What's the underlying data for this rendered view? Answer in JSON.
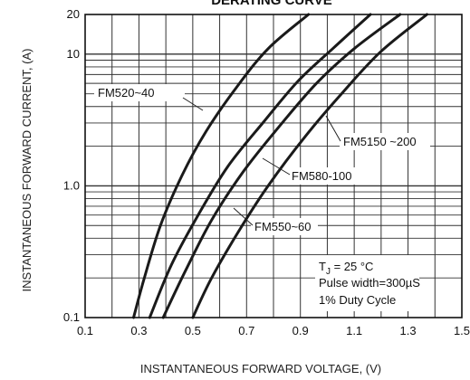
{
  "chart_data": {
    "type": "line",
    "title": "DERATING CURVE",
    "xlabel": "INSTANTANEOUS FORWARD VOLTAGE, (V)",
    "ylabel": "INSTANTANEOUS FORWARD CURRENT, (A)",
    "xlim": [
      0.1,
      1.5
    ],
    "ylim": [
      0.1,
      20
    ],
    "yscale": "log",
    "grid": true,
    "x_ticks": [
      "0.1",
      "0.3",
      "0.5",
      "0.7",
      "0.9",
      "1.1",
      "1.3",
      "1.5"
    ],
    "y_ticks": [
      {
        "value": 0.1,
        "label": "0.1"
      },
      {
        "value": 1,
        "label": "1.0"
      },
      {
        "value": 10,
        "label": "10"
      },
      {
        "value": 20,
        "label": "20"
      }
    ],
    "series": [
      {
        "name": "FM520~40",
        "x": [
          0.28,
          0.32,
          0.38,
          0.46,
          0.55,
          0.66,
          0.78,
          0.93
        ],
        "y": [
          0.1,
          0.2,
          0.5,
          1.2,
          2.6,
          5.5,
          11,
          20
        ]
      },
      {
        "name": "FM580-100",
        "x": [
          0.34,
          0.42,
          0.52,
          0.63,
          0.76,
          0.89,
          1.02,
          1.16
        ],
        "y": [
          0.1,
          0.25,
          0.6,
          1.4,
          3.0,
          6.2,
          11,
          20
        ]
      },
      {
        "name": "FM550~60",
        "x": [
          0.39,
          0.47,
          0.57,
          0.69,
          0.82,
          0.96,
          1.1,
          1.27
        ],
        "y": [
          0.1,
          0.22,
          0.55,
          1.3,
          2.8,
          6.0,
          11,
          20
        ]
      },
      {
        "name": "FM5150 ~200",
        "x": [
          0.5,
          0.57,
          0.67,
          0.78,
          0.92,
          1.06,
          1.2,
          1.37
        ],
        "y": [
          0.1,
          0.2,
          0.45,
          1.0,
          2.4,
          5.2,
          10.5,
          20
        ]
      }
    ],
    "annotations": {
      "tj_prefix": "T",
      "tj_sub": "J",
      "tj_value": " = 25 °C",
      "pulse": "Pulse width=300µS",
      "duty": "1% Duty Cycle"
    }
  }
}
